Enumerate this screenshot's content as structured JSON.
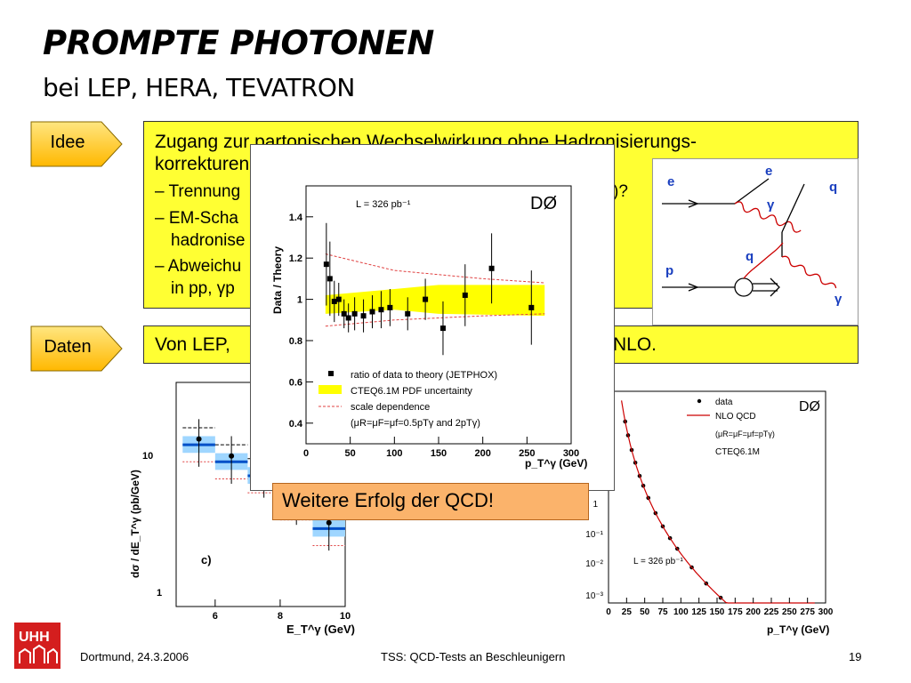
{
  "slide": {
    "title": "PROMPTE PHOTONEN",
    "subtitle": "bei LEP, HERA, TEVATRON"
  },
  "labels": {
    "idee": "Idee",
    "daten": "Daten"
  },
  "idee_box": {
    "line1": "Zugang zur partonischen Wechselwirkung ohne  Hadronisierungs-",
    "line2": "korrekturen",
    "bullet1": "– Trennung",
    "bullet1_end": ")?",
    "bullet2": "– EM-Scha",
    "bullet2_cont": "hadronise",
    "bullet3": "– Abweichu",
    "bullet3_cont": "in pp, γp"
  },
  "daten_box": {
    "text_start": "Von LEP,",
    "text_end": "NLO."
  },
  "conclusion": "Weitere Erfolg der QCD!",
  "footer": {
    "left": "Dortmund, 24.3.2006",
    "center": "TSS: QCD-Tests an Beschleunigern",
    "page": "19"
  },
  "logo": {
    "text": "UHH",
    "color": "#d41e1e"
  },
  "feynman": {
    "labels": [
      "e",
      "e",
      "γ",
      "q",
      "q",
      "p",
      "γ"
    ]
  },
  "colors": {
    "yellow_box": "#ffff33",
    "arrow_fill": "#ffcc33",
    "conclusion_bg": "#fbb36b",
    "gluon_red": "#cc0000",
    "photon_blue": "#1a3fbf"
  },
  "chart_data": [
    {
      "type": "scatter",
      "experiment": "DØ",
      "annotation": "L = 326 pb⁻¹",
      "xlabel": "p_T^γ (GeV)",
      "ylabel": "Data / Theory",
      "xlim": [
        0,
        300
      ],
      "ylim": [
        0.3,
        1.55
      ],
      "xticks": [
        0,
        50,
        100,
        150,
        200,
        250,
        300
      ],
      "yticks": [
        0.4,
        0.6,
        0.8,
        1.0,
        1.2,
        1.4
      ],
      "legend": [
        "ratio of data to theory (JETPHOX)",
        "CTEQ6.1M PDF uncertainty",
        "scale dependence",
        "(μR=μF=μf=0.5pTγ and 2pTγ)"
      ],
      "series": [
        {
          "name": "ratio of data to theory (JETPHOX)",
          "x": [
            23,
            27,
            32,
            37,
            43,
            48,
            55,
            65,
            75,
            85,
            95,
            115,
            135,
            155,
            180,
            210,
            255
          ],
          "y": [
            1.17,
            1.1,
            0.99,
            1.0,
            0.93,
            0.91,
            0.93,
            0.92,
            0.94,
            0.95,
            0.96,
            0.93,
            1.0,
            0.86,
            1.02,
            1.15,
            0.96
          ],
          "err": [
            0.2,
            0.18,
            0.1,
            0.08,
            0.07,
            0.07,
            0.08,
            0.08,
            0.08,
            0.09,
            0.09,
            0.08,
            0.1,
            0.13,
            0.15,
            0.17,
            0.18
          ]
        }
      ],
      "pdf_band": {
        "x": [
          22,
          100,
          150,
          270
        ],
        "lo": [
          0.93,
          0.95,
          0.93,
          0.92
        ],
        "hi": [
          1.02,
          1.05,
          1.07,
          1.07
        ]
      },
      "scale_upper": {
        "x": [
          22,
          100,
          200,
          270
        ],
        "y": [
          1.22,
          1.14,
          1.1,
          1.08
        ]
      },
      "scale_lower": {
        "x": [
          22,
          100,
          200,
          270
        ],
        "y": [
          0.87,
          0.9,
          0.92,
          0.93
        ]
      }
    },
    {
      "type": "bar",
      "panel_label": "c)",
      "xlabel": "E_T^γ (GeV)",
      "ylabel": "dσ / dE_T^γ  (pb/GeV)",
      "xticks": [
        6,
        8,
        10
      ],
      "yticks_labels": [
        "10",
        "1"
      ],
      "bins": [
        [
          5,
          6
        ],
        [
          6,
          7
        ],
        [
          7,
          8
        ],
        [
          8,
          9
        ],
        [
          9,
          10
        ]
      ],
      "values": [
        7.5,
        6.0,
        5.0,
        3.5,
        2.5
      ]
    },
    {
      "type": "scatter",
      "experiment": "DØ",
      "annotation": "L = 326 pb⁻¹",
      "legend": [
        "data",
        "NLO QCD",
        "(μR=μF=μf=pTγ)",
        "CTEQ6.1M"
      ],
      "xlabel": "p_T^γ (GeV)",
      "xlim": [
        0,
        300
      ],
      "xticks": [
        0,
        25,
        50,
        75,
        100,
        125,
        150,
        175,
        200,
        225,
        250,
        275,
        300
      ],
      "yticks_labels": [
        "1",
        "10⁻¹",
        "10⁻²",
        "10⁻³"
      ],
      "x": [
        23,
        27,
        32,
        37,
        43,
        48,
        55,
        65,
        75,
        85,
        95,
        115,
        135,
        155,
        180,
        210,
        255
      ]
    }
  ]
}
